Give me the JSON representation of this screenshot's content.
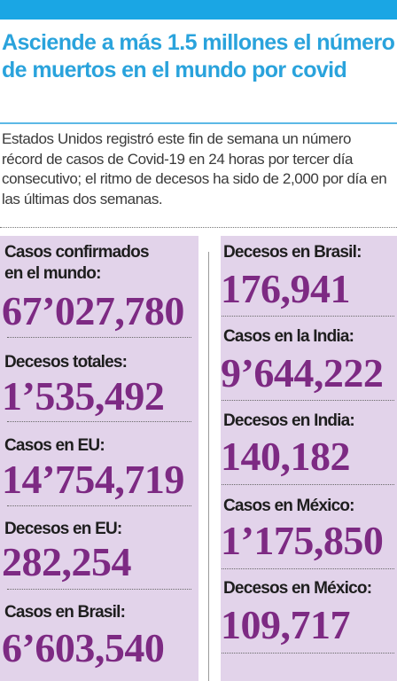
{
  "article": {
    "headline": "Asciende a más 1.5 millones el número de muertos en el mundo por covid",
    "deck": "Estados Unidos registró este fin de semana un número récord de casos de Covid-19 en 24 horas por tercer día consecutivo; el ritmo de decesos ha sido de 2,000 por día en las últimas dos semanas."
  },
  "stats_left": [
    {
      "label_line1": "Casos confirmados",
      "label_line2": "en el mundo:",
      "value": "67’027,780"
    },
    {
      "label_line1": "Decesos totales:",
      "value": "1’535,492"
    },
    {
      "label_line1": "Casos en EU:",
      "value": "14’754,719"
    },
    {
      "label_line1": "Decesos en EU:",
      "value": "282,254"
    },
    {
      "label_line1": "Casos en Brasil:",
      "value": "6’603,540"
    }
  ],
  "stats_right": [
    {
      "label_line1": "Decesos en Brasil:",
      "value": "176,941"
    },
    {
      "label_line1": "Casos en la India:",
      "value": "9’644,222"
    },
    {
      "label_line1": "Decesos en India:",
      "value": "140,182"
    },
    {
      "label_line1": "Casos en México:",
      "value": "1’175,850"
    },
    {
      "label_line1": "Decesos en México:",
      "value": "109,717"
    }
  ],
  "colors": {
    "headline": "#2aa3dc",
    "topbar": "#1aa6e4",
    "panel": "#e2d3ea",
    "figure": "#7d2a83"
  }
}
